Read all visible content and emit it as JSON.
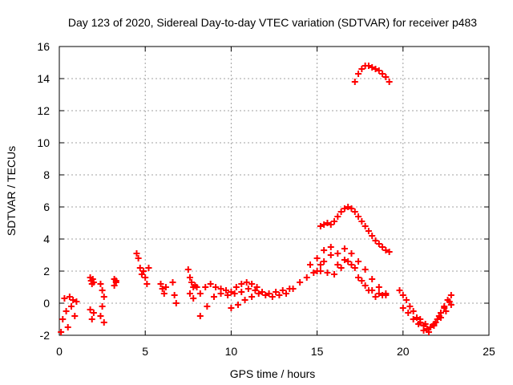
{
  "chart_data": {
    "type": "scatter",
    "title": "Day 123 of 2020, Sidereal Day-to-day VTEC variation (SDTVAR) for receiver p483",
    "xlabel": "GPS time / hours",
    "ylabel": "SDTVAR / TECUs",
    "xlim": [
      0,
      25
    ],
    "ylim": [
      -2,
      16
    ],
    "xticks": [
      0,
      5,
      10,
      15,
      20,
      25
    ],
    "yticks": [
      -2,
      0,
      2,
      4,
      6,
      8,
      10,
      12,
      14,
      16
    ],
    "grid": true,
    "marker": "+",
    "color": "#ff0000",
    "series": [
      {
        "name": "s1",
        "x": [
          0.1,
          0.2,
          0.3,
          0.4,
          0.5,
          0.6,
          0.7,
          0.8,
          0.9,
          1.0
        ],
        "y": [
          -1.8,
          -1.0,
          0.3,
          -0.5,
          -1.5,
          0.4,
          -0.2,
          0.2,
          -0.8,
          0.1
        ]
      },
      {
        "name": "s2",
        "x": [
          1.8,
          1.85,
          1.9,
          1.95,
          2.0,
          1.8,
          1.9,
          2.0
        ],
        "y": [
          1.6,
          1.4,
          1.2,
          1.5,
          1.3,
          -0.4,
          -1.0,
          -0.6
        ]
      },
      {
        "name": "s3",
        "x": [
          2.4,
          2.5,
          2.6,
          2.5,
          2.4,
          2.6
        ],
        "y": [
          1.2,
          0.8,
          0.4,
          -0.2,
          -0.8,
          -1.2
        ]
      },
      {
        "name": "s4",
        "x": [
          3.2,
          3.3,
          3.2,
          3.3
        ],
        "y": [
          1.5,
          1.3,
          1.1,
          1.4
        ]
      },
      {
        "name": "s5",
        "x": [
          4.5,
          4.6,
          4.7,
          4.8,
          4.9,
          5.0,
          5.1,
          5.2
        ],
        "y": [
          3.1,
          2.8,
          2.2,
          1.8,
          2.0,
          1.6,
          1.2,
          2.2
        ]
      },
      {
        "name": "s6",
        "x": [
          5.9,
          6.0,
          6.1,
          6.2,
          6.6,
          6.7,
          6.8
        ],
        "y": [
          1.2,
          0.9,
          0.6,
          1.0,
          1.3,
          0.5,
          0.0
        ]
      },
      {
        "name": "s7",
        "x": [
          7.5,
          7.6,
          7.7,
          7.8,
          7.9,
          8.0,
          7.6,
          7.8
        ],
        "y": [
          2.1,
          1.6,
          1.3,
          1.0,
          1.1,
          1.0,
          0.6,
          0.3
        ]
      },
      {
        "name": "s8",
        "x": [
          8.2,
          8.5,
          8.8,
          9.1,
          9.4,
          9.7,
          10.0,
          10.3,
          10.6,
          10.9,
          11.2,
          11.5
        ],
        "y": [
          0.6,
          1.0,
          1.2,
          1.0,
          0.9,
          0.8,
          0.7,
          1.0,
          1.2,
          1.3,
          1.2,
          1.0
        ]
      },
      {
        "name": "s9",
        "x": [
          8.2,
          8.6,
          9.0,
          9.4,
          9.8,
          10.2,
          10.6,
          11.0,
          11.4,
          11.8,
          12.2,
          12.6,
          13.0,
          13.4
        ],
        "y": [
          -0.8,
          -0.2,
          0.4,
          0.6,
          0.5,
          0.6,
          0.7,
          0.9,
          0.8,
          0.7,
          0.6,
          0.7,
          0.8,
          0.9
        ]
      },
      {
        "name": "s10",
        "x": [
          10.0,
          10.4,
          10.8,
          11.2,
          11.6,
          12.0,
          12.4,
          12.8,
          13.2,
          13.6,
          14.0,
          14.4,
          14.8,
          15.2
        ],
        "y": [
          -0.3,
          -0.1,
          0.2,
          0.4,
          0.6,
          0.5,
          0.4,
          0.5,
          0.6,
          0.9,
          1.3,
          1.6,
          1.9,
          2.4
        ]
      },
      {
        "name": "s11",
        "x": [
          15.2,
          15.4,
          15.6,
          15.8,
          16.0,
          16.2,
          16.4,
          16.6,
          16.8,
          17.0,
          17.2,
          17.4,
          17.6,
          17.8,
          18.0,
          18.2,
          18.4,
          18.6,
          18.8,
          19.0,
          19.2
        ],
        "y": [
          4.8,
          4.9,
          5.0,
          4.9,
          5.1,
          5.4,
          5.7,
          5.9,
          6.0,
          5.9,
          5.7,
          5.4,
          5.1,
          4.8,
          4.5,
          4.2,
          3.9,
          3.7,
          3.5,
          3.3,
          3.2
        ]
      },
      {
        "name": "s12",
        "x": [
          17.2,
          17.4,
          17.6,
          17.8,
          18.0,
          18.2,
          18.4,
          18.6,
          18.8,
          19.0,
          19.2
        ],
        "y": [
          13.8,
          14.3,
          14.6,
          14.8,
          14.8,
          14.7,
          14.6,
          14.5,
          14.3,
          14.1,
          13.8
        ]
      },
      {
        "name": "s13",
        "x": [
          14.6,
          15.0,
          15.4,
          15.8,
          16.2,
          16.6,
          17.0,
          17.4,
          17.8,
          18.2,
          18.6,
          19.0
        ],
        "y": [
          2.4,
          2.8,
          3.3,
          3.5,
          3.1,
          2.7,
          2.4,
          1.6,
          1.1,
          0.8,
          0.6,
          0.5
        ]
      },
      {
        "name": "s14",
        "x": [
          15.0,
          15.4,
          15.8,
          16.2,
          16.6,
          17.0,
          17.4,
          17.8,
          18.2,
          18.6,
          19.0
        ],
        "y": [
          2.0,
          2.6,
          3.0,
          2.4,
          3.4,
          3.1,
          2.6,
          2.1,
          1.5,
          1.0,
          0.6
        ]
      },
      {
        "name": "s15",
        "x": [
          15.2,
          15.6,
          16.0,
          16.4,
          16.8,
          17.2,
          17.6,
          18.0,
          18.4,
          18.8
        ],
        "y": [
          2.0,
          1.9,
          1.8,
          2.2,
          2.6,
          2.2,
          1.4,
          0.8,
          0.4,
          0.5
        ]
      },
      {
        "name": "s16",
        "x": [
          19.8,
          20.0,
          20.2,
          20.4,
          20.6,
          20.8,
          21.0,
          21.2,
          21.4,
          21.6,
          21.8,
          22.0,
          22.2,
          22.4,
          22.6,
          22.8
        ],
        "y": [
          0.8,
          0.5,
          0.2,
          -0.2,
          -0.5,
          -0.9,
          -1.2,
          -1.4,
          -1.6,
          -1.5,
          -1.3,
          -1.0,
          -0.6,
          -0.2,
          0.2,
          0.5
        ]
      },
      {
        "name": "s17",
        "x": [
          20.0,
          20.3,
          20.6,
          20.9,
          21.2,
          21.5,
          21.8,
          22.1,
          22.4,
          22.7
        ],
        "y": [
          -0.3,
          -0.6,
          -1.0,
          -1.3,
          -1.7,
          -1.8,
          -1.4,
          -0.8,
          -0.3,
          0.1
        ]
      },
      {
        "name": "s18",
        "x": [
          21.0,
          21.3,
          21.6,
          21.9,
          22.2,
          22.5,
          22.8
        ],
        "y": [
          -1.0,
          -1.3,
          -1.5,
          -1.2,
          -0.9,
          -0.5,
          -0.1
        ]
      }
    ]
  }
}
